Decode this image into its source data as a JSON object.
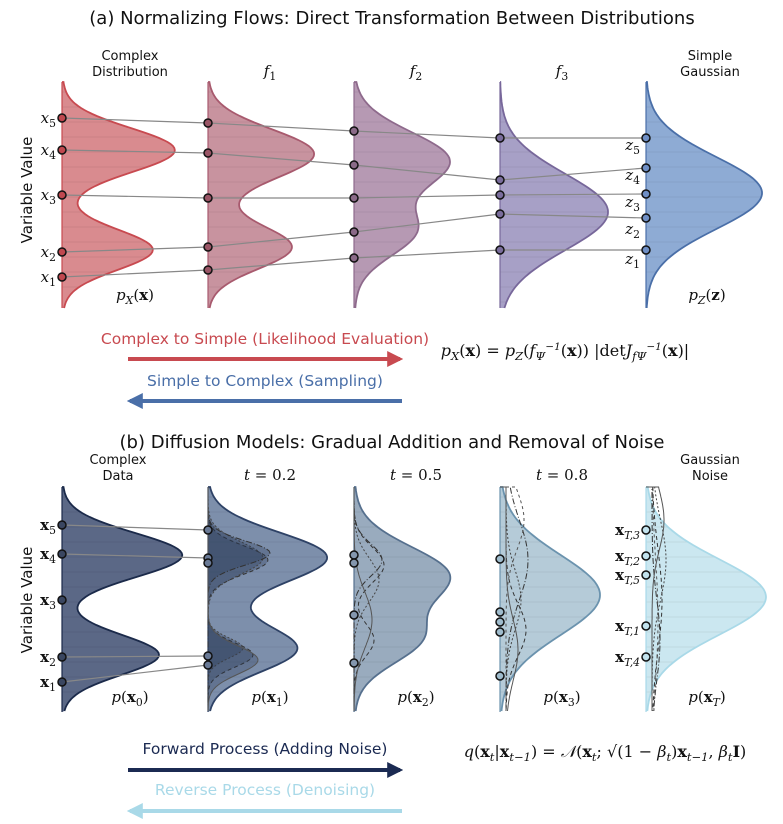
{
  "panel_a": {
    "title": "(a) Normalizing Flows: Direct Transformation Between Distributions",
    "y_label": "Variable Value",
    "headers": [
      {
        "lines": [
          "Complex",
          "Distribution"
        ]
      },
      {
        "math": [
          [
            "f",
            "i"
          ],
          [
            "1",
            "sub"
          ]
        ]
      },
      {
        "math": [
          [
            "f",
            "i"
          ],
          [
            "2",
            "sub"
          ]
        ]
      },
      {
        "math": [
          [
            "f",
            "i"
          ],
          [
            "3",
            "sub"
          ]
        ]
      },
      {
        "lines": [
          "Simple",
          "Gaussian"
        ]
      }
    ],
    "dist_labels": [
      [
        [
          "p",
          "i"
        ],
        [
          "X",
          "subi"
        ],
        [
          "(",
          ""
        ],
        [
          "x",
          "b"
        ],
        [
          ")",
          ""
        ]
      ],
      [
        [
          "p",
          "i"
        ],
        [
          "Z",
          "subi"
        ],
        [
          "(",
          ""
        ],
        [
          "z",
          "b"
        ],
        [
          ")",
          ""
        ]
      ]
    ],
    "point_labels_left": [
      [
        [
          "x",
          "i"
        ],
        [
          "5",
          "sub"
        ]
      ],
      [
        [
          "x",
          "i"
        ],
        [
          "4",
          "sub"
        ]
      ],
      [
        [
          "x",
          "i"
        ],
        [
          "3",
          "sub"
        ]
      ],
      [
        [
          "x",
          "i"
        ],
        [
          "2",
          "sub"
        ]
      ],
      [
        [
          "x",
          "i"
        ],
        [
          "1",
          "sub"
        ]
      ]
    ],
    "point_labels_right": [
      [
        [
          "z",
          "i"
        ],
        [
          "5",
          "sub"
        ]
      ],
      [
        [
          "z",
          "i"
        ],
        [
          "4",
          "sub"
        ]
      ],
      [
        [
          "z",
          "i"
        ],
        [
          "3",
          "sub"
        ]
      ],
      [
        [
          "z",
          "i"
        ],
        [
          "2",
          "sub"
        ]
      ],
      [
        [
          "z",
          "i"
        ],
        [
          "1",
          "sub"
        ]
      ]
    ],
    "arrow_forward": "Complex to Simple (Likelihood Evaluation)",
    "arrow_backward": "Simple to Complex (Sampling)",
    "formula": [
      [
        "p",
        "i"
      ],
      [
        "X",
        "subi"
      ],
      [
        "(",
        ""
      ],
      [
        "x",
        "b"
      ],
      [
        ") = ",
        ""
      ],
      [
        "p",
        "i"
      ],
      [
        "Z",
        "subi"
      ],
      [
        "(",
        ""
      ],
      [
        "f",
        "i"
      ],
      [
        "Ψ",
        "subi"
      ],
      [
        "−1",
        "supx"
      ],
      [
        "(",
        ""
      ],
      [
        "x",
        "b"
      ],
      [
        "))  |det",
        ""
      ],
      [
        "J",
        "i"
      ],
      [
        "f",
        "subi"
      ],
      [
        "Ψ",
        "subi"
      ],
      [
        "−1",
        "supx"
      ],
      [
        "(",
        ""
      ],
      [
        "x",
        "b"
      ],
      [
        ")|",
        ""
      ]
    ],
    "colors": {
      "forward": "#c84a50",
      "backward": "#4a6fa8"
    }
  },
  "panel_b": {
    "title": "(b) Diffusion Models: Gradual Addition and Removal of Noise",
    "y_label": "Variable Value",
    "headers": [
      {
        "lines": [
          "Complex",
          "Data"
        ]
      },
      {
        "math": [
          [
            "t",
            "i"
          ],
          [
            " = 0.2",
            ""
          ]
        ]
      },
      {
        "math": [
          [
            "t",
            "i"
          ],
          [
            " = 0.5",
            ""
          ]
        ]
      },
      {
        "math": [
          [
            "t",
            "i"
          ],
          [
            " = 0.8",
            ""
          ]
        ]
      },
      {
        "lines": [
          "Gaussian",
          "Noise"
        ]
      }
    ],
    "dist_labels": [
      [
        [
          "p",
          "i"
        ],
        [
          "(",
          ""
        ],
        [
          "x",
          "b"
        ],
        [
          "0",
          "sub"
        ],
        [
          ")",
          ""
        ]
      ],
      [
        [
          "p",
          "i"
        ],
        [
          "(",
          ""
        ],
        [
          "x",
          "b"
        ],
        [
          "1",
          "sub"
        ],
        [
          ")",
          ""
        ]
      ],
      [
        [
          "p",
          "i"
        ],
        [
          "(",
          ""
        ],
        [
          "x",
          "b"
        ],
        [
          "2",
          "sub"
        ],
        [
          ")",
          ""
        ]
      ],
      [
        [
          "p",
          "i"
        ],
        [
          "(",
          ""
        ],
        [
          "x",
          "b"
        ],
        [
          "3",
          "sub"
        ],
        [
          ")",
          ""
        ]
      ],
      [
        [
          "p",
          "i"
        ],
        [
          "(",
          ""
        ],
        [
          "x",
          "b"
        ],
        [
          "T",
          "subi"
        ],
        [
          ")",
          ""
        ]
      ]
    ],
    "point_labels_left": [
      [
        [
          "x",
          "b"
        ],
        [
          "5",
          "sub"
        ]
      ],
      [
        [
          "x",
          "b"
        ],
        [
          "4",
          "sub"
        ]
      ],
      [
        [
          "x",
          "b"
        ],
        [
          "3",
          "sub"
        ]
      ],
      [
        [
          "x",
          "b"
        ],
        [
          "2",
          "sub"
        ]
      ],
      [
        [
          "x",
          "b"
        ],
        [
          "1",
          "sub"
        ]
      ]
    ],
    "point_labels_right": [
      [
        [
          "x",
          "b"
        ],
        [
          "T,3",
          "subi"
        ]
      ],
      [
        [
          "x",
          "b"
        ],
        [
          "T,2",
          "subi"
        ]
      ],
      [
        [
          "x",
          "b"
        ],
        [
          "T,5",
          "subi"
        ]
      ],
      [
        [
          "x",
          "b"
        ],
        [
          "T,1",
          "subi"
        ]
      ],
      [
        [
          "x",
          "b"
        ],
        [
          "T,4",
          "subi"
        ]
      ]
    ],
    "arrow_forward": "Forward Process (Adding Noise)",
    "arrow_backward": "Reverse Process (Denoising)",
    "formula": [
      [
        "q",
        "i"
      ],
      [
        "(",
        ""
      ],
      [
        "x",
        "b"
      ],
      [
        "t",
        "subi"
      ],
      [
        "|",
        ""
      ],
      [
        "x",
        "b"
      ],
      [
        "t−1",
        "subi"
      ],
      [
        ") = ",
        ""
      ],
      [
        "𝒩",
        "i"
      ],
      [
        "(",
        ""
      ],
      [
        "x",
        "b"
      ],
      [
        "t",
        "subi"
      ],
      [
        "; √(1 − ",
        ""
      ],
      [
        "β",
        "i"
      ],
      [
        "t",
        "subi"
      ],
      [
        ")",
        ""
      ],
      [
        "x",
        "b"
      ],
      [
        "t−1",
        "subi"
      ],
      [
        ", ",
        ""
      ],
      [
        "β",
        "i"
      ],
      [
        "t",
        "subi"
      ],
      [
        "I",
        "b"
      ],
      [
        ")",
        ""
      ]
    ],
    "colors": {
      "forward": "#1b2a52",
      "backward": "#a9d9e8"
    }
  }
}
